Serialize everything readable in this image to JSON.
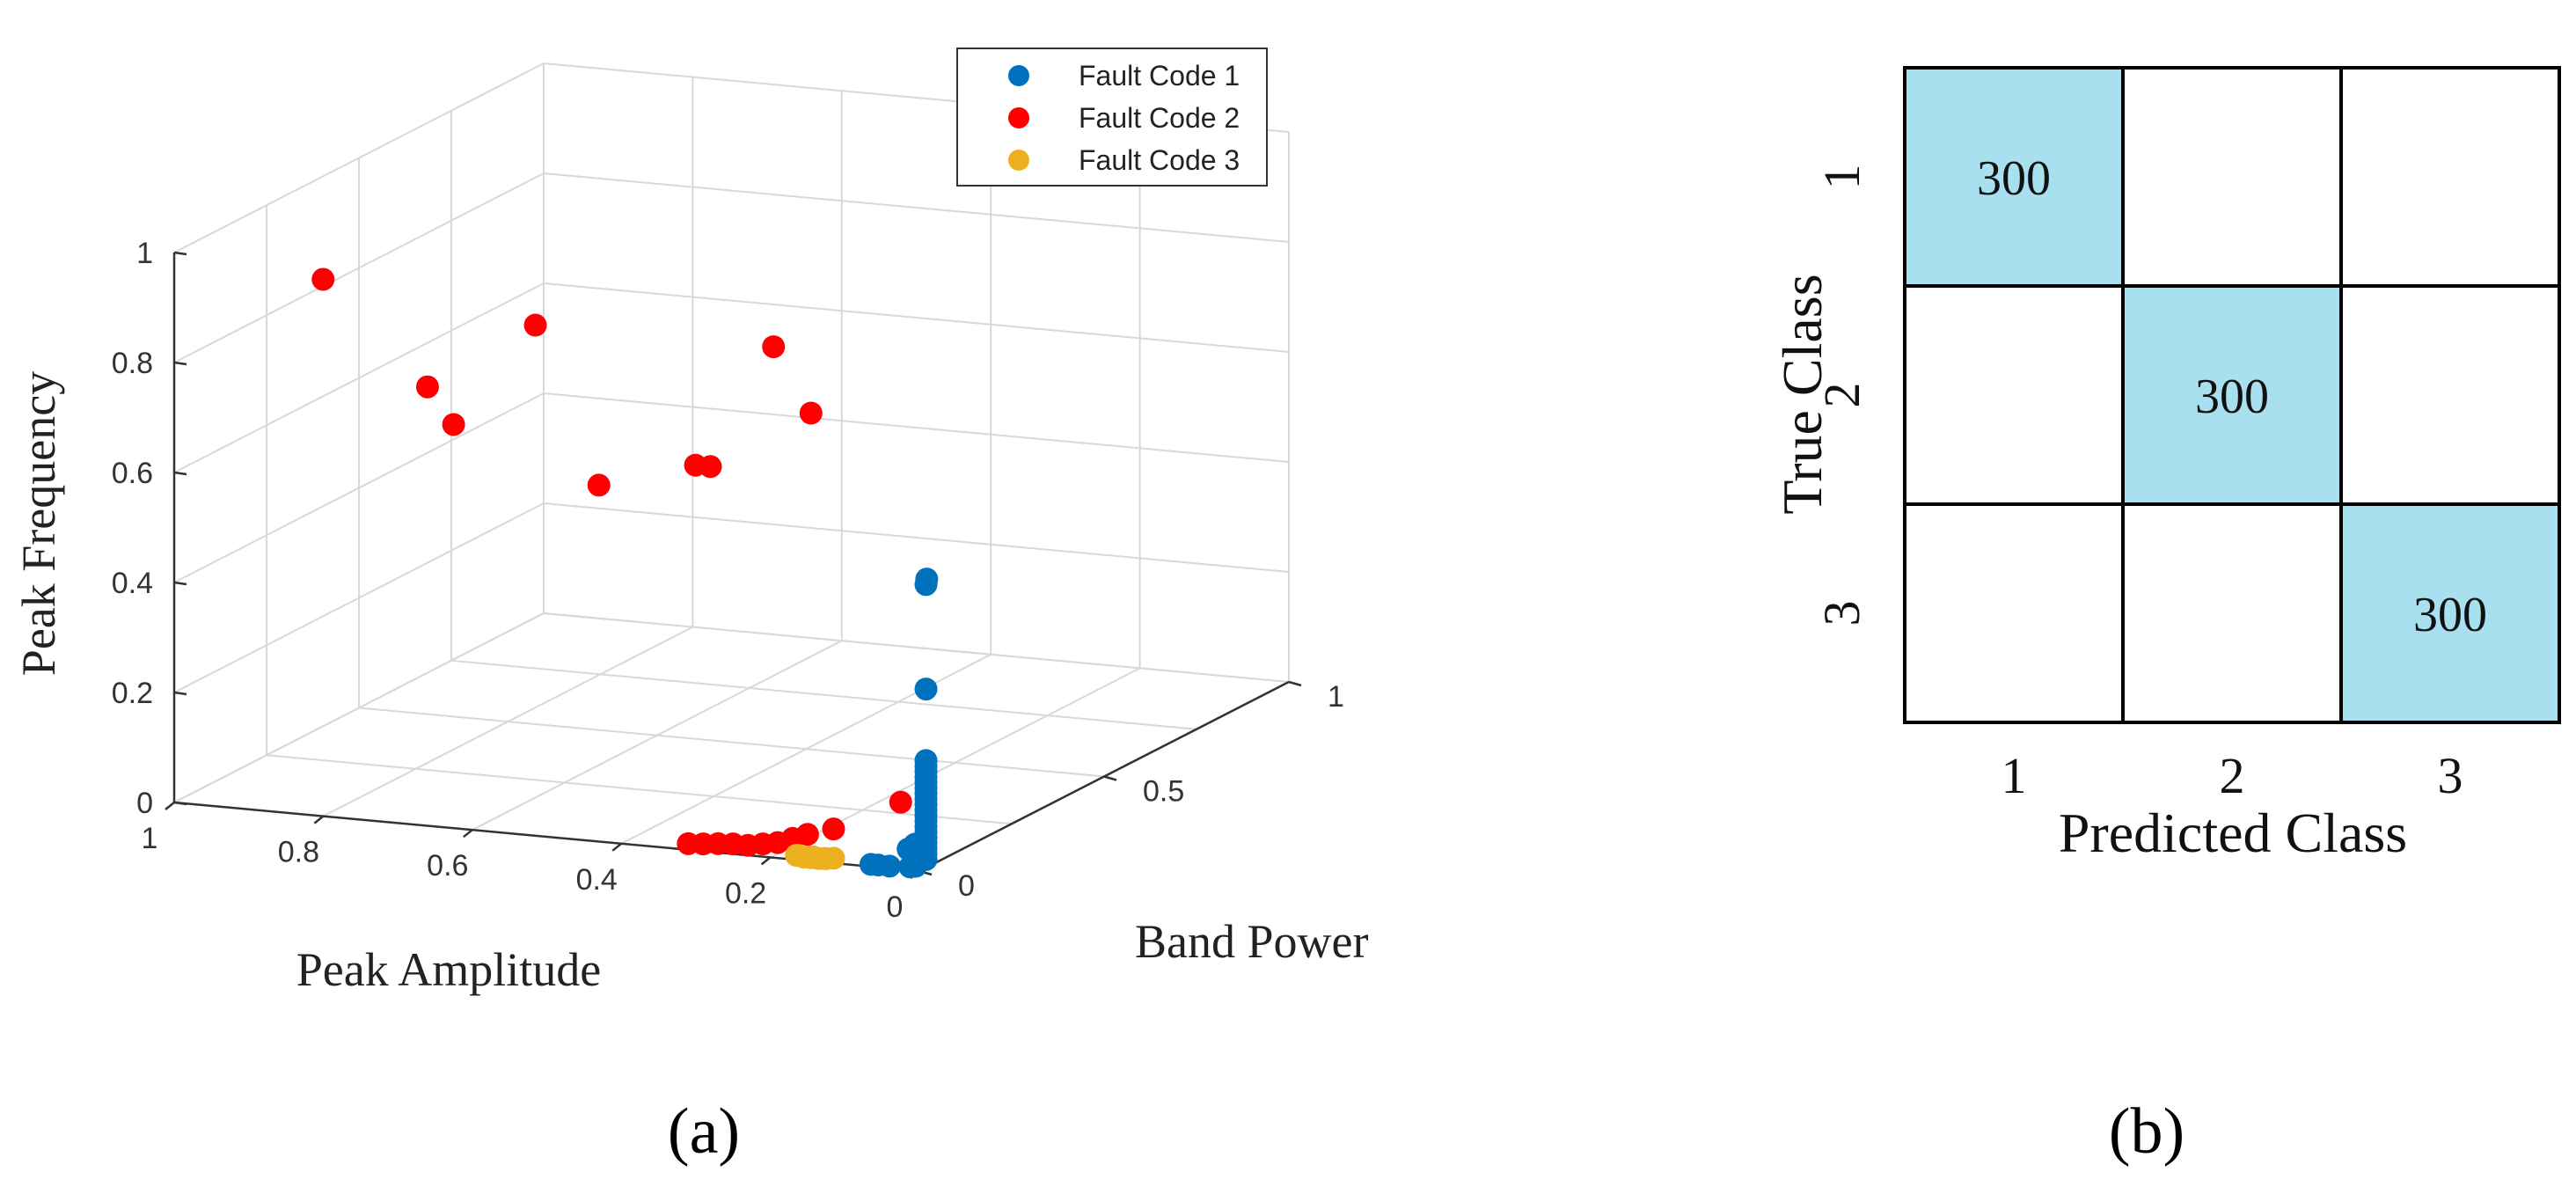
{
  "chart_data": [
    {
      "type": "scatter",
      "subtitle": "(a)",
      "xlabel": "Peak Amplitude",
      "ylabel": "Band Power",
      "zlabel": "Peak Frequency",
      "xlim": [
        0,
        1
      ],
      "ylim": [
        0,
        1
      ],
      "zlim": [
        0,
        1
      ],
      "x_ticks": [
        "1",
        "0.8",
        "0.6",
        "0.4",
        "0.2",
        "0"
      ],
      "y_ticks": [
        "0",
        "0.5",
        "1"
      ],
      "z_ticks": [
        "0",
        "0.2",
        "0.4",
        "0.6",
        "0.8",
        "1"
      ],
      "grid": true,
      "legend_position": "top-right",
      "colors": {
        "series1": "#0072BD",
        "series2": "#FF0000",
        "series3": "#EDB120",
        "grid": "#d8d8d8",
        "axis": "#333333"
      },
      "series": [
        {
          "name": "Fault Code 1",
          "points": [
            [
              0.005,
              0.03,
              0.52
            ],
            [
              0.006,
              0.03,
              0.51
            ],
            [
              0.006,
              0.03,
              0.32
            ],
            [
              0.006,
              0.03,
              0.19
            ],
            [
              0.006,
              0.03,
              0.18
            ],
            [
              0.006,
              0.03,
              0.17
            ],
            [
              0.006,
              0.03,
              0.15
            ],
            [
              0.006,
              0.03,
              0.13
            ],
            [
              0.006,
              0.03,
              0.11
            ],
            [
              0.006,
              0.03,
              0.09
            ],
            [
              0.006,
              0.03,
              0.08
            ],
            [
              0.006,
              0.03,
              0.07
            ],
            [
              0.006,
              0.03,
              0.06
            ],
            [
              0.006,
              0.03,
              0.05
            ],
            [
              0.006,
              0.03,
              0.04
            ],
            [
              0.006,
              0.03,
              0.03
            ],
            [
              0.006,
              0.03,
              0.02
            ],
            [
              0.006,
              0.03,
              0.01
            ],
            [
              0.016,
              0.02,
              0.04
            ],
            [
              0.025,
              0.02,
              0.03
            ],
            [
              0.01,
              0.02,
              0.01
            ],
            [
              0.015,
              0.02,
              0.0
            ],
            [
              0.02,
              0.015,
              0.0
            ],
            [
              0.045,
              0.01,
              0.0
            ],
            [
              0.06,
              0.01,
              0.0
            ],
            [
              0.07,
              0.01,
              0.0
            ],
            [
              0.006,
              0.03,
              0.1
            ],
            [
              0.006,
              0.03,
              0.12
            ],
            [
              0.006,
              0.03,
              0.14
            ],
            [
              0.006,
              0.03,
              0.16
            ]
          ]
        },
        {
          "name": "Fault Code 2",
          "points": [
            [
              0.82,
              0.04,
              0.96
            ],
            [
              0.55,
              0.07,
              0.9
            ],
            [
              0.28,
              0.17,
              0.86
            ],
            [
              0.67,
              0.02,
              0.79
            ],
            [
              0.63,
              0.01,
              0.73
            ],
            [
              0.2,
              0.11,
              0.77
            ],
            [
              0.35,
              0.1,
              0.66
            ],
            [
              0.33,
              0.1,
              0.66
            ],
            [
              0.44,
              0.02,
              0.64
            ],
            [
              0.04,
              0.03,
              0.11
            ],
            [
              0.13,
              0.03,
              0.05
            ],
            [
              0.16,
              0.02,
              0.04
            ],
            [
              0.18,
              0.02,
              0.03
            ],
            [
              0.2,
              0.02,
              0.02
            ],
            [
              0.22,
              0.02,
              0.015
            ],
            [
              0.24,
              0.02,
              0.01
            ],
            [
              0.26,
              0.02,
              0.01
            ],
            [
              0.28,
              0.02,
              0.008
            ],
            [
              0.3,
              0.02,
              0.005
            ],
            [
              0.32,
              0.02,
              0.003
            ]
          ]
        },
        {
          "name": "Fault Code 3",
          "points": [
            [
              0.12,
              0.01,
              0.005
            ],
            [
              0.13,
              0.01,
              0.003
            ],
            [
              0.14,
              0.01,
              0.002
            ],
            [
              0.15,
              0.01,
              0.002
            ],
            [
              0.16,
              0.01,
              0.002
            ],
            [
              0.17,
              0.01,
              0.004
            ],
            [
              0.135,
              0.015,
              0.001
            ],
            [
              0.155,
              0.015,
              0.001
            ],
            [
              0.145,
              0.005,
              0.006
            ],
            [
              0.165,
              0.005,
              0.006
            ]
          ]
        }
      ]
    },
    {
      "type": "heatmap",
      "subtitle": "(b)",
      "xlabel": "Predicted Class",
      "ylabel": "True Class",
      "categories": [
        "1",
        "2",
        "3"
      ],
      "values": [
        [
          300,
          0,
          0
        ],
        [
          0,
          300,
          0
        ],
        [
          0,
          0,
          300
        ]
      ],
      "colors": {
        "highlight": "#A8E0F0",
        "empty": "#ffffff",
        "border": "#000000"
      }
    }
  ]
}
